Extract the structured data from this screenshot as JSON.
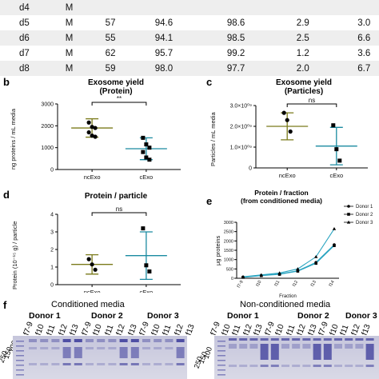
{
  "table": {
    "rows": [
      [
        "d4",
        "M",
        "",
        "",
        "",
        "",
        ""
      ],
      [
        "d5",
        "M",
        "57",
        "94.6",
        "98.6",
        "2.9",
        "3.0"
      ],
      [
        "d6",
        "M",
        "55",
        "94.1",
        "98.5",
        "2.5",
        "6.6"
      ],
      [
        "d7",
        "M",
        "62",
        "95.7",
        "99.2",
        "1.2",
        "3.6"
      ],
      [
        "d8",
        "M",
        "59",
        "98.0",
        "97.7",
        "2.0",
        "6.7"
      ]
    ]
  },
  "panels": {
    "b": {
      "letter": "b",
      "title1": "Exosome yield",
      "title2": "(Protein)",
      "ylabel": "ng proteins / mL media",
      "sig": "**"
    },
    "c": {
      "letter": "c",
      "title1": "Exosome yield",
      "title2": "(Particles)",
      "ylabel": "Particles / mL media",
      "sig": "ns"
    },
    "d": {
      "letter": "d",
      "title1": "Protein / particle",
      "ylabel": "Protein (10⁻¹⁵ g) / particle",
      "sig": "ns"
    },
    "e": {
      "letter": "e",
      "title1": "Protein / fraction",
      "title2": "(from conditioned media)",
      "ylabel": "μg proteins",
      "xlabel": "Fraction"
    },
    "f": {
      "letter": "f",
      "cond_title": "Conditioned media",
      "noncond_title": "Non-conditioned media",
      "donors": [
        "Donor 1",
        "Donor 2",
        "Donor 3"
      ],
      "lanes": [
        "f7-9",
        "f10",
        "f11",
        "f12",
        "f13"
      ],
      "mw": [
        "250",
        "150",
        "100"
      ]
    }
  },
  "chart_data": [
    {
      "type": "scatter",
      "title": "Exosome yield (Protein)",
      "ylabel": "ng proteins / mL media",
      "categories": [
        "ncExo",
        "cExo"
      ],
      "ylim": [
        0,
        3000
      ],
      "yticks": [
        0,
        1000,
        2000,
        3000
      ],
      "points": [
        [
          2150,
          1950,
          1900,
          1700,
          1550,
          1500
        ],
        [
          1450,
          1150,
          1000,
          800,
          550,
          450
        ]
      ],
      "mean": [
        1900,
        950
      ],
      "sd": [
        420,
        500
      ],
      "colors": [
        "#7a7a1a",
        "#1a8aa0"
      ]
    },
    {
      "type": "scatter",
      "title": "Exosome yield (Particles)",
      "ylabel": "Particles / mL media",
      "categories": [
        "ncExo",
        "cExo"
      ],
      "ylim": [
        0,
        3000000000.0
      ],
      "ytick_labels": [
        "0",
        "1.0×10⁰⁹",
        "2.0×10⁰⁹",
        "3.0×10⁰⁹"
      ],
      "points": [
        [
          2650000000.0,
          2300000000.0,
          1750000000.0
        ],
        [
          2050000000.0,
          900000000.0,
          350000000.0
        ]
      ],
      "mean": [
        2000000000.0,
        1050000000.0
      ],
      "sd": [
        650000000.0,
        900000000.0
      ],
      "colors": [
        "#7a7a1a",
        "#1a8aa0"
      ]
    },
    {
      "type": "scatter",
      "title": "Protein / particle",
      "ylabel": "Protein (10⁻¹⁵ g) / particle",
      "categories": [
        "ncExo",
        "cExo"
      ],
      "ylim": [
        0,
        4
      ],
      "yticks": [
        0,
        1,
        2,
        3,
        4
      ],
      "points": [
        [
          1.45,
          1.15,
          0.85
        ],
        [
          3.2,
          1.1,
          0.75
        ]
      ],
      "mean": [
        1.15,
        1.65
      ],
      "sd": [
        0.55,
        1.35
      ],
      "colors": [
        "#7a7a1a",
        "#1a8aa0"
      ]
    },
    {
      "type": "line",
      "title": "Protein / fraction (from conditioned media)",
      "xlabel": "Fraction",
      "ylabel": "μg proteins",
      "categories": [
        "f7-9",
        "f10",
        "f11",
        "f12",
        "f13",
        "f14"
      ],
      "ylim": [
        0,
        3000
      ],
      "yticks": [
        0,
        500,
        1000,
        1500,
        2000,
        2500,
        3000
      ],
      "series": [
        {
          "name": "Donor 1",
          "marker": "circle",
          "values": [
            60,
            150,
            230,
            400,
            850,
            1800
          ]
        },
        {
          "name": "Donor 2",
          "marker": "square",
          "values": [
            50,
            140,
            210,
            380,
            800,
            1750
          ]
        },
        {
          "name": "Donor 3",
          "marker": "triangle",
          "values": [
            80,
            180,
            280,
            500,
            1150,
            2650
          ]
        }
      ],
      "colors": [
        "#2aa4c0",
        "#2aa4c0",
        "#2aa4c0"
      ]
    }
  ]
}
